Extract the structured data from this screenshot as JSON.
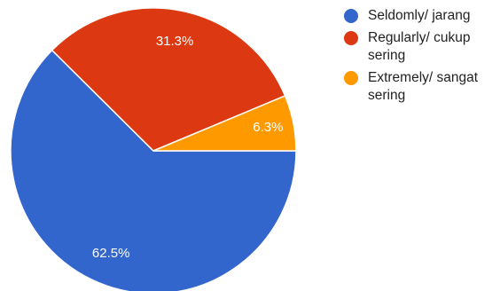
{
  "chart_data": {
    "type": "pie",
    "title": "",
    "slices": [
      {
        "label": "Seldomly/ jarang",
        "value": 62.5,
        "display": "62.5%",
        "color": "#3366cc"
      },
      {
        "label": "Regularly/ cukup sering",
        "value": 31.3,
        "display": "31.3%",
        "color": "#dc3912"
      },
      {
        "label": "Extremely/ sangat sering",
        "value": 6.3,
        "display": "6.3%",
        "color": "#ff9900"
      }
    ],
    "legend_position": "right"
  }
}
